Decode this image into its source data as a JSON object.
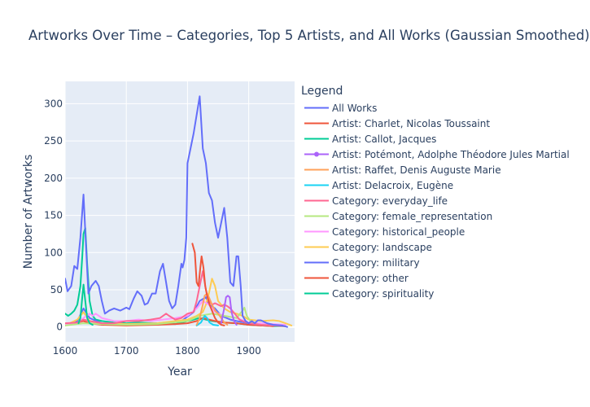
{
  "chart_data": {
    "type": "line",
    "title": "Artworks Over Time – Categories, Top 5 Artists, and All Works (Gaussian Smoothed)",
    "xlabel": "Year",
    "ylabel": "Number of Artworks",
    "xlim": [
      1600,
      1975
    ],
    "ylim": [
      -20,
      330
    ],
    "xticks": [
      1600,
      1700,
      1800,
      1900
    ],
    "yticks": [
      0,
      50,
      100,
      150,
      200,
      250,
      300
    ],
    "grid": true,
    "legend_title": "Legend",
    "legend_position": "right",
    "series": [
      {
        "name": "All Works",
        "color": "#636efa",
        "points": [
          [
            1600,
            65
          ],
          [
            1604,
            48
          ],
          [
            1610,
            55
          ],
          [
            1615,
            82
          ],
          [
            1620,
            78
          ],
          [
            1625,
            120
          ],
          [
            1630,
            178
          ],
          [
            1634,
            110
          ],
          [
            1638,
            45
          ],
          [
            1643,
            55
          ],
          [
            1650,
            62
          ],
          [
            1655,
            55
          ],
          [
            1660,
            35
          ],
          [
            1665,
            18
          ],
          [
            1672,
            22
          ],
          [
            1680,
            25
          ],
          [
            1690,
            22
          ],
          [
            1700,
            26
          ],
          [
            1705,
            24
          ],
          [
            1712,
            38
          ],
          [
            1718,
            48
          ],
          [
            1725,
            42
          ],
          [
            1730,
            30
          ],
          [
            1735,
            32
          ],
          [
            1742,
            45
          ],
          [
            1748,
            45
          ],
          [
            1755,
            75
          ],
          [
            1760,
            85
          ],
          [
            1765,
            60
          ],
          [
            1770,
            35
          ],
          [
            1775,
            25
          ],
          [
            1780,
            30
          ],
          [
            1785,
            55
          ],
          [
            1790,
            85
          ],
          [
            1792,
            80
          ],
          [
            1795,
            90
          ],
          [
            1798,
            120
          ],
          [
            1800,
            220
          ],
          [
            1810,
            260
          ],
          [
            1820,
            310
          ],
          [
            1825,
            240
          ],
          [
            1830,
            220
          ],
          [
            1835,
            180
          ],
          [
            1840,
            170
          ],
          [
            1845,
            140
          ],
          [
            1850,
            120
          ],
          [
            1855,
            140
          ],
          [
            1860,
            160
          ],
          [
            1865,
            120
          ],
          [
            1870,
            60
          ],
          [
            1875,
            55
          ],
          [
            1880,
            95
          ],
          [
            1883,
            95
          ],
          [
            1887,
            55
          ],
          [
            1890,
            15
          ],
          [
            1895,
            8
          ],
          [
            1900,
            5
          ],
          [
            1905,
            8
          ],
          [
            1910,
            5
          ],
          [
            1915,
            9
          ],
          [
            1920,
            9
          ],
          [
            1930,
            5
          ],
          [
            1940,
            3
          ],
          [
            1955,
            2
          ],
          [
            1963,
            0
          ]
        ]
      },
      {
        "name": "Artist: Charlet, Nicolas Toussaint",
        "color": "#ef553b",
        "points": [
          [
            1808,
            112
          ],
          [
            1812,
            100
          ],
          [
            1815,
            60
          ],
          [
            1818,
            55
          ],
          [
            1821,
            80
          ],
          [
            1823,
            95
          ],
          [
            1826,
            80
          ],
          [
            1829,
            55
          ],
          [
            1832,
            42
          ],
          [
            1836,
            30
          ],
          [
            1840,
            22
          ],
          [
            1845,
            12
          ],
          [
            1850,
            6
          ],
          [
            1855,
            3
          ],
          [
            1860,
            2
          ]
        ]
      },
      {
        "name": "Artist: Callot, Jacques",
        "color": "#00cc96",
        "points": [
          [
            1622,
            5
          ],
          [
            1625,
            12
          ],
          [
            1628,
            40
          ],
          [
            1630,
            57
          ],
          [
            1633,
            35
          ],
          [
            1636,
            12
          ],
          [
            1640,
            5
          ],
          [
            1645,
            3
          ]
        ]
      },
      {
        "name": "Artist: Potémont, Adolphe Théodore Jules Martial",
        "color": "#ab63fa",
        "points": [
          [
            1855,
            5
          ],
          [
            1860,
            25
          ],
          [
            1863,
            40
          ],
          [
            1866,
            42
          ],
          [
            1869,
            40
          ],
          [
            1872,
            20
          ],
          [
            1876,
            8
          ],
          [
            1880,
            3
          ]
        ]
      },
      {
        "name": "Artist: Raffet, Denis Auguste Marie",
        "color": "#ffa15a",
        "points": [
          [
            1815,
            3
          ],
          [
            1820,
            12
          ],
          [
            1825,
            30
          ],
          [
            1828,
            42
          ],
          [
            1832,
            45
          ],
          [
            1835,
            40
          ],
          [
            1840,
            30
          ],
          [
            1845,
            22
          ],
          [
            1850,
            18
          ],
          [
            1855,
            12
          ],
          [
            1860,
            6
          ],
          [
            1865,
            3
          ]
        ]
      },
      {
        "name": "Artist: Delacroix, Eugène",
        "color": "#19d3f3",
        "points": [
          [
            1815,
            2
          ],
          [
            1822,
            6
          ],
          [
            1828,
            15
          ],
          [
            1832,
            12
          ],
          [
            1836,
            6
          ],
          [
            1842,
            3
          ],
          [
            1850,
            2
          ]
        ]
      },
      {
        "name": "Category: everyday_life",
        "color": "#ff6692",
        "points": [
          [
            1600,
            5
          ],
          [
            1620,
            6
          ],
          [
            1630,
            10
          ],
          [
            1640,
            8
          ],
          [
            1660,
            5
          ],
          [
            1680,
            5
          ],
          [
            1700,
            8
          ],
          [
            1720,
            8
          ],
          [
            1740,
            10
          ],
          [
            1755,
            12
          ],
          [
            1765,
            18
          ],
          [
            1770,
            15
          ],
          [
            1780,
            10
          ],
          [
            1790,
            12
          ],
          [
            1800,
            18
          ],
          [
            1810,
            20
          ],
          [
            1815,
            35
          ],
          [
            1820,
            55
          ],
          [
            1825,
            75
          ],
          [
            1830,
            50
          ],
          [
            1835,
            35
          ],
          [
            1840,
            30
          ],
          [
            1845,
            32
          ],
          [
            1850,
            30
          ],
          [
            1855,
            28
          ],
          [
            1860,
            30
          ],
          [
            1865,
            28
          ],
          [
            1870,
            25
          ],
          [
            1875,
            20
          ],
          [
            1880,
            15
          ],
          [
            1885,
            10
          ],
          [
            1890,
            8
          ],
          [
            1900,
            5
          ],
          [
            1920,
            3
          ],
          [
            1940,
            2
          ],
          [
            1960,
            1
          ]
        ]
      },
      {
        "name": "Category: female_representation",
        "color": "#b6e880",
        "points": [
          [
            1600,
            2
          ],
          [
            1630,
            5
          ],
          [
            1660,
            4
          ],
          [
            1700,
            3
          ],
          [
            1750,
            4
          ],
          [
            1800,
            8
          ],
          [
            1820,
            15
          ],
          [
            1840,
            18
          ],
          [
            1860,
            15
          ],
          [
            1880,
            12
          ],
          [
            1890,
            22
          ],
          [
            1893,
            26
          ],
          [
            1897,
            15
          ],
          [
            1905,
            5
          ],
          [
            1920,
            3
          ],
          [
            1940,
            2
          ],
          [
            1960,
            1
          ]
        ]
      },
      {
        "name": "Category: historical_people",
        "color": "#ff97ff",
        "points": [
          [
            1600,
            3
          ],
          [
            1620,
            5
          ],
          [
            1630,
            12
          ],
          [
            1640,
            18
          ],
          [
            1645,
            15
          ],
          [
            1650,
            18
          ],
          [
            1655,
            15
          ],
          [
            1660,
            12
          ],
          [
            1680,
            8
          ],
          [
            1700,
            8
          ],
          [
            1720,
            10
          ],
          [
            1740,
            8
          ],
          [
            1760,
            10
          ],
          [
            1780,
            12
          ],
          [
            1800,
            15
          ],
          [
            1815,
            25
          ],
          [
            1825,
            35
          ],
          [
            1835,
            30
          ],
          [
            1845,
            20
          ],
          [
            1860,
            15
          ],
          [
            1880,
            12
          ],
          [
            1900,
            6
          ],
          [
            1920,
            5
          ],
          [
            1940,
            4
          ],
          [
            1960,
            3
          ]
        ]
      },
      {
        "name": "Category: landscape",
        "color": "#fecb52",
        "points": [
          [
            1600,
            2
          ],
          [
            1620,
            10
          ],
          [
            1630,
            20
          ],
          [
            1640,
            8
          ],
          [
            1660,
            5
          ],
          [
            1700,
            4
          ],
          [
            1750,
            5
          ],
          [
            1780,
            8
          ],
          [
            1800,
            10
          ],
          [
            1815,
            15
          ],
          [
            1825,
            20
          ],
          [
            1830,
            30
          ],
          [
            1835,
            45
          ],
          [
            1840,
            65
          ],
          [
            1845,
            55
          ],
          [
            1850,
            35
          ],
          [
            1855,
            30
          ],
          [
            1860,
            25
          ],
          [
            1870,
            20
          ],
          [
            1880,
            18
          ],
          [
            1890,
            15
          ],
          [
            1900,
            10
          ],
          [
            1920,
            8
          ],
          [
            1940,
            9
          ],
          [
            1950,
            8
          ],
          [
            1960,
            5
          ],
          [
            1970,
            2
          ]
        ]
      },
      {
        "name": "Category: military",
        "color": "#636efa",
        "points": [
          [
            1600,
            3
          ],
          [
            1620,
            8
          ],
          [
            1630,
            25
          ],
          [
            1640,
            12
          ],
          [
            1660,
            5
          ],
          [
            1700,
            4
          ],
          [
            1750,
            5
          ],
          [
            1790,
            8
          ],
          [
            1810,
            20
          ],
          [
            1820,
            35
          ],
          [
            1830,
            40
          ],
          [
            1835,
            30
          ],
          [
            1845,
            25
          ],
          [
            1855,
            15
          ],
          [
            1870,
            10
          ],
          [
            1880,
            8
          ],
          [
            1900,
            5
          ],
          [
            1920,
            3
          ],
          [
            1940,
            2
          ]
        ]
      },
      {
        "name": "Category: other",
        "color": "#ef553b",
        "points": [
          [
            1600,
            3
          ],
          [
            1610,
            4
          ],
          [
            1620,
            6
          ],
          [
            1630,
            8
          ],
          [
            1640,
            5
          ],
          [
            1660,
            3
          ],
          [
            1700,
            2
          ],
          [
            1750,
            3
          ],
          [
            1780,
            4
          ],
          [
            1800,
            5
          ],
          [
            1815,
            8
          ],
          [
            1825,
            12
          ],
          [
            1835,
            10
          ],
          [
            1845,
            8
          ],
          [
            1860,
            6
          ],
          [
            1880,
            5
          ],
          [
            1900,
            3
          ],
          [
            1920,
            2
          ],
          [
            1940,
            1
          ]
        ]
      },
      {
        "name": "Category: spirituality",
        "color": "#00cc96",
        "points": [
          [
            1600,
            18
          ],
          [
            1605,
            15
          ],
          [
            1610,
            18
          ],
          [
            1615,
            22
          ],
          [
            1620,
            30
          ],
          [
            1625,
            55
          ],
          [
            1628,
            95
          ],
          [
            1630,
            125
          ],
          [
            1633,
            133
          ],
          [
            1636,
            85
          ],
          [
            1640,
            35
          ],
          [
            1645,
            15
          ],
          [
            1650,
            10
          ],
          [
            1660,
            8
          ],
          [
            1680,
            6
          ],
          [
            1700,
            5
          ],
          [
            1720,
            6
          ],
          [
            1750,
            5
          ],
          [
            1780,
            4
          ],
          [
            1800,
            8
          ],
          [
            1810,
            10
          ],
          [
            1820,
            12
          ],
          [
            1830,
            10
          ],
          [
            1840,
            8
          ],
          [
            1860,
            6
          ],
          [
            1880,
            5
          ],
          [
            1900,
            3
          ],
          [
            1920,
            2
          ],
          [
            1940,
            1
          ],
          [
            1960,
            1
          ]
        ]
      }
    ]
  }
}
